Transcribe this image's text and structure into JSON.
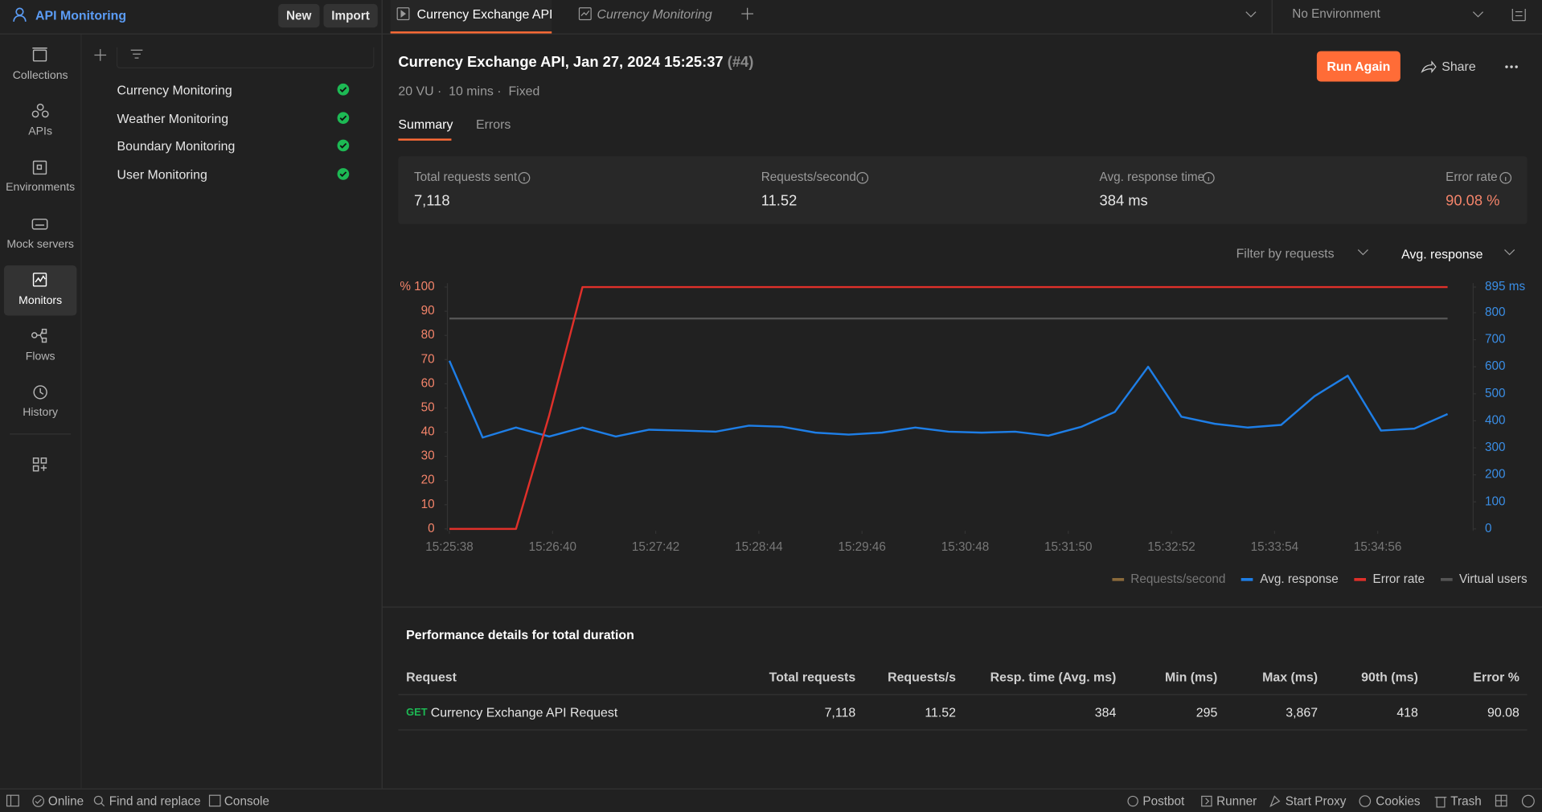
{
  "workspace": {
    "name": "API Monitoring",
    "new": "New",
    "import": "Import"
  },
  "nav": [
    "Collections",
    "APIs",
    "Environments",
    "Mock servers",
    "Monitors",
    "Flows",
    "History"
  ],
  "monitors": [
    "Currency Monitoring",
    "Weather Monitoring",
    "Boundary Monitoring",
    "User Monitoring"
  ],
  "tabs": [
    "Currency Exchange API",
    "Currency Monitoring"
  ],
  "environment": "No Environment",
  "header": {
    "title": "Currency Exchange API, Jan 27, 2024 15:25:37",
    "run": "(#4)",
    "meta": [
      "20 VU",
      "10 mins",
      "Fixed"
    ],
    "run_again": "Run Again",
    "share": "Share"
  },
  "subtabs": [
    "Summary",
    "Errors"
  ],
  "stats": [
    {
      "label": "Total requests sent",
      "value": "7,118"
    },
    {
      "label": "Requests/second",
      "value": "11.52"
    },
    {
      "label": "Avg. response time",
      "value": "384 ms"
    },
    {
      "label": "Error rate",
      "value": "90.08 %"
    }
  ],
  "filters": [
    "Filter by requests",
    "Avg. response"
  ],
  "chart_data": {
    "type": "line",
    "x": [
      "15:25:38",
      "15:25:58",
      "15:26:18",
      "15:26:38",
      "15:26:58",
      "15:27:18",
      "15:27:38",
      "15:27:58",
      "15:28:18",
      "15:28:38",
      "15:28:58",
      "15:29:18",
      "15:29:38",
      "15:29:58",
      "15:30:18",
      "15:30:38",
      "15:30:58",
      "15:31:18",
      "15:31:38",
      "15:31:58",
      "15:32:18",
      "15:32:38",
      "15:32:58",
      "15:33:18",
      "15:33:38",
      "15:33:58",
      "15:34:18",
      "15:34:38",
      "15:34:58",
      "15:35:18",
      "15:35:38"
    ],
    "xlim": [
      "15:25:38",
      "15:35:38"
    ],
    "xticks": [
      "15:25:38",
      "15:26:40",
      "15:27:42",
      "15:28:44",
      "15:29:46",
      "15:30:48",
      "15:31:50",
      "15:32:52",
      "15:33:54",
      "15:34:56"
    ],
    "ylim": [
      0,
      100
    ],
    "yticks": [
      0,
      10,
      20,
      30,
      40,
      50,
      60,
      70,
      80,
      90,
      {
        "value": 100,
        "label": "% 100"
      }
    ],
    "y2lim": [
      0,
      895
    ],
    "y2ticks": [
      0,
      100,
      200,
      300,
      400,
      500,
      600,
      700,
      800,
      {
        "value": 895,
        "label": "895 ms"
      }
    ],
    "series": [
      {
        "name": "Requests/second",
        "color": "#8a6a3b",
        "values": [
          null,
          null,
          null,
          null,
          null,
          null,
          null,
          null,
          null,
          null,
          null,
          null,
          null,
          null,
          null,
          null,
          null,
          null,
          null,
          null,
          null,
          null,
          null,
          null,
          null,
          null,
          null,
          null,
          null,
          null,
          null
        ]
      },
      {
        "name": "Avg. response",
        "color": "#1e7ee6",
        "axis": "y2",
        "values": [
          622,
          338,
          375,
          342,
          375,
          342,
          367,
          364,
          360,
          382,
          378,
          356,
          349,
          356,
          375,
          360,
          356,
          360,
          345,
          378,
          433,
          600,
          415,
          389,
          375,
          385,
          491,
          567,
          364,
          371,
          425
        ]
      },
      {
        "name": "Error rate",
        "color": "#e0302a",
        "values": [
          0,
          0,
          0,
          47,
          100,
          100,
          100,
          100,
          100,
          100,
          100,
          100,
          100,
          100,
          100,
          100,
          100,
          100,
          100,
          100,
          100,
          100,
          100,
          100,
          100,
          100,
          100,
          100,
          100,
          100,
          100
        ]
      },
      {
        "name": "Virtual users",
        "color": "#555555",
        "values": [
          87,
          87,
          87,
          87,
          87,
          87,
          87,
          87,
          87,
          87,
          87,
          87,
          87,
          87,
          87,
          87,
          87,
          87,
          87,
          87,
          87,
          87,
          87,
          87,
          87,
          87,
          87,
          87,
          87,
          87,
          87
        ]
      }
    ],
    "grid": false
  },
  "table": {
    "title": "Performance details for total duration",
    "columns": [
      "Request",
      "Total requests",
      "Requests/s",
      "Resp. time (Avg. ms)",
      "Min (ms)",
      "Max (ms)",
      "90th (ms)",
      "Error %"
    ],
    "rows": [
      [
        "GET",
        "Currency Exchange API Request",
        "7,118",
        "11.52",
        "384",
        "295",
        "3,867",
        "418",
        "90.08"
      ]
    ]
  },
  "statusbar": [
    "Online",
    "Find and replace",
    "Console",
    "Postbot",
    "Runner",
    "Start Proxy",
    "Cookies",
    "Trash"
  ]
}
